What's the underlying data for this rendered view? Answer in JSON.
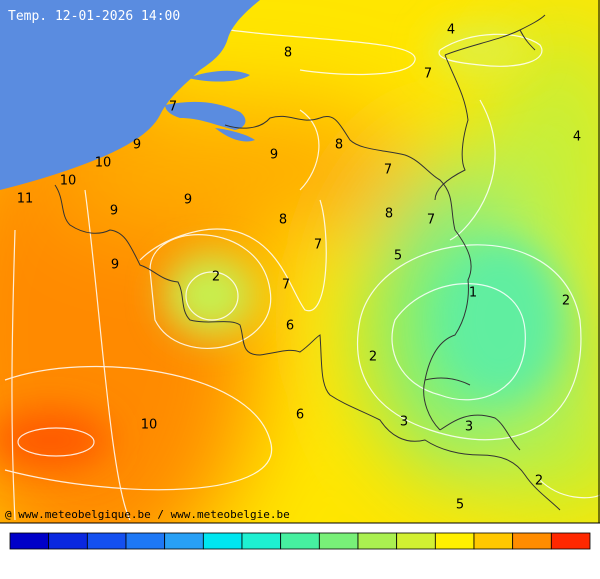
{
  "title": "Temp. 12-01-2026 14:00",
  "credit": "@ www.meteobelgique.be / www.meteobelgie.be",
  "labels": [
    8,
    4,
    7,
    7,
    4,
    9,
    9,
    8,
    10,
    7,
    10,
    11,
    9,
    9,
    8,
    8,
    7,
    7,
    5,
    9,
    2,
    7,
    1,
    2,
    6,
    2,
    10,
    6,
    3,
    3,
    2,
    5
  ],
  "legend": {
    "colors": [
      "#0000c8",
      "#0a28e0",
      "#1450f0",
      "#1e78f5",
      "#28a0f5",
      "#00e6f0",
      "#1ef0d2",
      "#46f0a0",
      "#78f078",
      "#aaf050",
      "#d2f032",
      "#fff000",
      "#ffc800",
      "#ff8c00",
      "#ff2800"
    ]
  }
}
